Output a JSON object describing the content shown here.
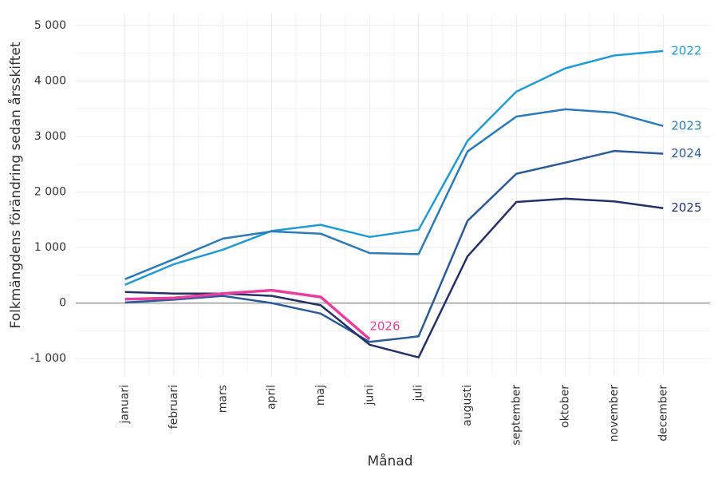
{
  "chart_data": {
    "type": "line",
    "xlabel": "Månad",
    "ylabel": "Folkmängdens förändring sedan årsskiftet",
    "categories": [
      "januari",
      "februari",
      "mars",
      "april",
      "maj",
      "juni",
      "juli",
      "augusti",
      "september",
      "oktober",
      "november",
      "december"
    ],
    "series": [
      {
        "name": "2022",
        "color": "#1f9bd7",
        "values": [
          330,
          700,
          960,
          1300,
          1410,
          1190,
          1320,
          2920,
          3810,
          4230,
          4460,
          4540
        ]
      },
      {
        "name": "2023",
        "color": "#2b7bba",
        "values": [
          430,
          790,
          1160,
          1290,
          1250,
          900,
          880,
          2730,
          3360,
          3490,
          3430,
          3190
        ]
      },
      {
        "name": "2024",
        "color": "#2a5a9a",
        "values": [
          10,
          60,
          130,
          0,
          -190,
          -700,
          -600,
          1480,
          2330,
          2530,
          2740,
          2690
        ]
      },
      {
        "name": "2025",
        "color": "#23306a",
        "values": [
          200,
          170,
          170,
          130,
          -40,
          -750,
          -980,
          840,
          1820,
          1880,
          1830,
          1710
        ]
      },
      {
        "name": "2026",
        "color": "#e83e9c",
        "values": [
          70,
          90,
          170,
          230,
          110,
          -650,
          null,
          null,
          null,
          null,
          null,
          null
        ]
      }
    ],
    "ylim": [
      -1300,
      5200
    ],
    "yticks": [
      {
        "value": -1000,
        "label": "-1 000"
      },
      0,
      {
        "value": 1000,
        "label": "1 000"
      },
      {
        "value": 2000,
        "label": "2 000"
      },
      {
        "value": 3000,
        "label": "3 000"
      },
      {
        "value": 4000,
        "label": "4 000"
      },
      {
        "value": 5000,
        "label": "5 000"
      }
    ],
    "grid": true
  }
}
